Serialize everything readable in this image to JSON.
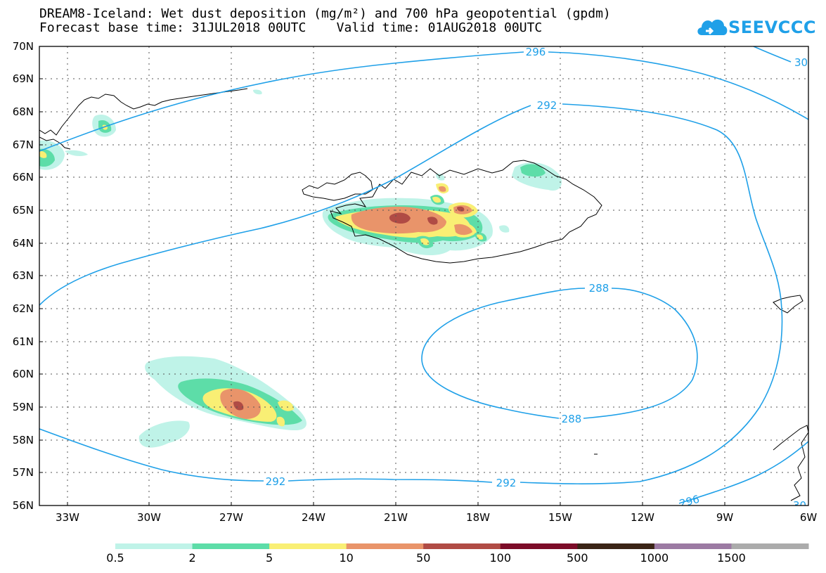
{
  "header": {
    "title_line1": "DREAM8-Iceland: Wet dust deposition (mg/m²) and 700 hPa geopotential (gpdm)",
    "title_line2": "Forecast base time: 31JUL2018 00UTC    Valid time: 01AUG2018 00UTC"
  },
  "logo": {
    "text": "SEEVCCC",
    "icon": "cloud-icon",
    "color": "#1fa0e8"
  },
  "map": {
    "lat_labels": [
      "70N",
      "69N",
      "68N",
      "67N",
      "66N",
      "65N",
      "64N",
      "63N",
      "62N",
      "61N",
      "60N",
      "59N",
      "58N",
      "57N",
      "56N"
    ],
    "lon_labels": [
      "33W",
      "30W",
      "27W",
      "24W",
      "21W",
      "18W",
      "15W",
      "12W",
      "9W",
      "6W"
    ],
    "contour_color": "#1fa0e8",
    "contour_labels": {
      "c296_top": "296",
      "c300_top": "30",
      "c292_north": "292",
      "c288_top": "288",
      "c288_bottom": "288",
      "c292_south_left": "292",
      "c292_south_right": "292",
      "c296_bottom": "296",
      "c300_bottom": "30"
    }
  },
  "legend": {
    "colors": [
      "#bff3e8",
      "#5ddda8",
      "#f9ef74",
      "#e9946a",
      "#b04b45",
      "#7c0c28",
      "#3a2416",
      "#9c7aa3",
      "#ababab"
    ],
    "labels": [
      "0.5",
      "2",
      "5",
      "10",
      "50",
      "100",
      "500",
      "1000",
      "1500"
    ]
  }
}
